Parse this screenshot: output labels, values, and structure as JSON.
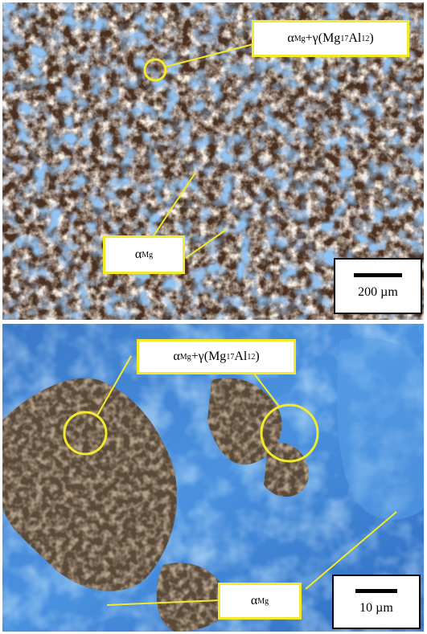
{
  "panels": [
    {
      "id": "top",
      "phase_label": {
        "alpha": "α",
        "sub1": "Mg",
        "plus": "+γ(Mg",
        "sub2": "17",
        "al": "Al",
        "sub3": "12",
        "close": ")"
      },
      "matrix_label": {
        "alpha": "α",
        "sub1": "Mg"
      },
      "scale_text": "200 µm"
    },
    {
      "id": "bottom",
      "phase_label": {
        "alpha": "α",
        "sub1": "Mg",
        "plus": "+γ(Mg",
        "sub2": "17",
        "al": "Al",
        "sub3": "12",
        "close": ")"
      },
      "matrix_label": {
        "alpha": "α",
        "sub1": "Mg"
      },
      "scale_text": "10 µm"
    }
  ],
  "colors": {
    "annotation": "#f2ea2a",
    "ice_blue": "#3a86d6",
    "dark_grain": "#5a3a22"
  }
}
